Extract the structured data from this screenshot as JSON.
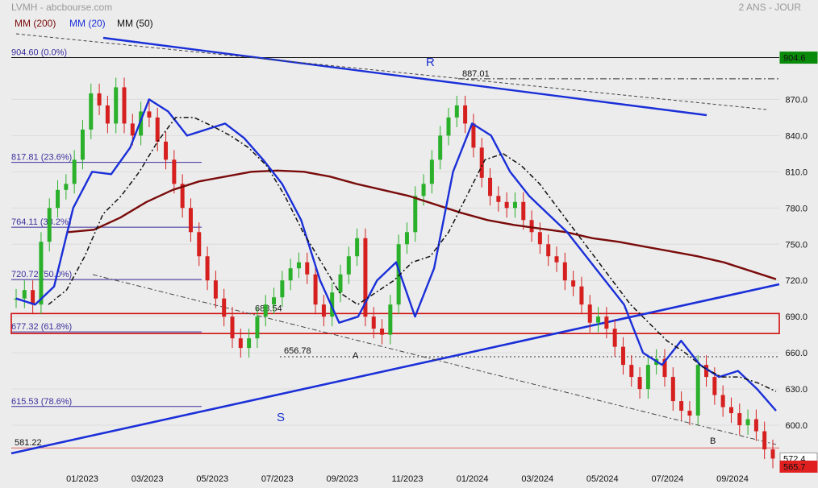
{
  "header": {
    "left": "LVMH - abcbourse.com",
    "right": "2 ANS - JOUR"
  },
  "legend": [
    {
      "label": "MM (200)",
      "color": "#7a0b0b"
    },
    {
      "label": "MM (20)",
      "color": "#1a2fd8"
    },
    {
      "label": "MM (50)",
      "color": "#111111"
    }
  ],
  "chart_data": {
    "type": "candlestick",
    "x_ticks": [
      "01/2023",
      "03/2023",
      "05/2023",
      "07/2023",
      "09/2023",
      "11/2023",
      "01/2024",
      "03/2024",
      "05/2024",
      "07/2024",
      "09/2024"
    ],
    "y_ticks": [
      "870.0",
      "840.0",
      "810.0",
      "780.0",
      "750.0",
      "720.0",
      "690.0",
      "660.0",
      "630.0",
      "600.0"
    ],
    "ylim": [
      560,
      935
    ],
    "fibonacci": [
      {
        "label": "904.60 (0.0%)",
        "value": 904.6
      },
      {
        "label": "817.81 (23.6%)",
        "value": 817.81
      },
      {
        "label": "764.11 (38.2%)",
        "value": 764.11
      },
      {
        "label": "720.72 (50.0%)",
        "value": 720.72
      },
      {
        "label": "677.32 (61.8%)",
        "value": 677.32
      },
      {
        "label": "615.53 (78.6%)",
        "value": 615.53
      }
    ],
    "levels": [
      {
        "label": "887.01",
        "value": 887.01
      },
      {
        "label": "688.54",
        "value": 688.54
      },
      {
        "label": "656.78",
        "value": 656.78
      },
      {
        "label": "581.22",
        "value": 581.22
      }
    ],
    "annotations": [
      "R",
      "S",
      "A",
      "B"
    ],
    "price_tags": [
      {
        "label": "904.6",
        "value": 904.6,
        "color": "#0a8a0a"
      },
      {
        "label": "572.4",
        "value": 572.4,
        "color": "#ffffff"
      },
      {
        "label": "565.7",
        "value": 565.7,
        "color": "#e02020"
      }
    ],
    "series": [
      {
        "name": "MM (200)",
        "values": [
          760,
          762,
          772,
          785,
          795,
          802,
          806,
          810,
          811,
          810,
          806,
          800,
          795,
          790,
          783,
          776,
          770,
          766,
          763,
          760,
          755,
          752,
          748,
          744,
          740,
          735,
          728,
          721
        ]
      },
      {
        "name": "MM (20)",
        "values": [
          705,
          700,
          715,
          780,
          810,
          808,
          830,
          870,
          860,
          840,
          845,
          850,
          838,
          820,
          800,
          770,
          720,
          685,
          690,
          720,
          735,
          690,
          730,
          810,
          850,
          840,
          810,
          790,
          775,
          760,
          740,
          720,
          700,
          660,
          650,
          670,
          650,
          640,
          645,
          630,
          612
        ]
      },
      {
        "name": "MM (50)",
        "values": [
          700,
          712,
          740,
          775,
          790,
          810,
          835,
          855,
          855,
          848,
          840,
          830,
          815,
          790,
          760,
          735,
          710,
          700,
          710,
          720,
          735,
          740,
          760,
          790,
          820,
          825,
          815,
          800,
          780,
          760,
          740,
          720,
          700,
          685,
          670,
          660,
          648,
          640,
          640,
          635,
          628
        ]
      },
      {
        "name": "close",
        "values": [
          705,
          712,
          700,
          752,
          780,
          795,
          800,
          820,
          845,
          875,
          865,
          850,
          880,
          850,
          840,
          860,
          855,
          835,
          820,
          800,
          780,
          760,
          740,
          720,
          705,
          690,
          672,
          664,
          672,
          690,
          700,
          706,
          720,
          730,
          735,
          725,
          700,
          690,
          710,
          725,
          740,
          755,
          690,
          680,
          675,
          700,
          750,
          760,
          790,
          800,
          820,
          840,
          855,
          865,
          850,
          830,
          805,
          790,
          785,
          780,
          785,
          770,
          760,
          750,
          740,
          735,
          720,
          715,
          700,
          685,
          690,
          680,
          665,
          650,
          640,
          630,
          650,
          655,
          640,
          620,
          612,
          608,
          650,
          640,
          625,
          615,
          610,
          600,
          605,
          595,
          580,
          572.4
        ]
      }
    ]
  }
}
